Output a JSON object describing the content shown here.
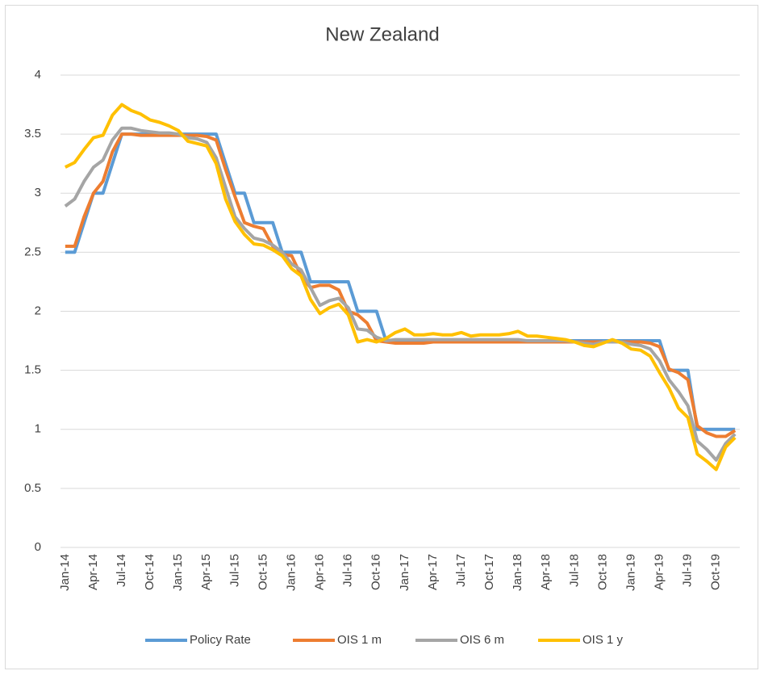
{
  "chart_data": {
    "type": "line",
    "title": "New Zealand",
    "categories": [
      "Jan-14",
      null,
      null,
      "Apr-14",
      null,
      null,
      "Jul-14",
      null,
      null,
      "Oct-14",
      null,
      null,
      "Jan-15",
      null,
      null,
      "Apr-15",
      null,
      null,
      "Jul-15",
      null,
      null,
      "Oct-15",
      null,
      null,
      "Jan-16",
      null,
      null,
      "Apr-16",
      null,
      null,
      "Jul-16",
      null,
      null,
      "Oct-16",
      null,
      null,
      "Jan-17",
      null,
      null,
      "Apr-17",
      null,
      null,
      "Jul-17",
      null,
      null,
      "Oct-17",
      null,
      null,
      "Jan-18",
      null,
      null,
      "Apr-18",
      null,
      null,
      "Jul-18",
      null,
      null,
      "Oct-18",
      null,
      null,
      "Jan-19",
      null,
      null,
      "Apr-19",
      null,
      null,
      "Jul-19",
      null,
      null,
      "Oct-19",
      null,
      null
    ],
    "series": [
      {
        "name": "Policy Rate",
        "color": "#5b9bd5",
        "values": [
          2.5,
          2.5,
          2.75,
          3,
          3,
          3.25,
          3.5,
          3.5,
          3.5,
          3.5,
          3.5,
          3.5,
          3.5,
          3.5,
          3.5,
          3.5,
          3.5,
          3.25,
          3,
          3,
          2.75,
          2.75,
          2.75,
          2.5,
          2.5,
          2.5,
          2.25,
          2.25,
          2.25,
          2.25,
          2.25,
          2,
          2,
          2,
          1.75,
          1.75,
          1.75,
          1.75,
          1.75,
          1.75,
          1.75,
          1.75,
          1.75,
          1.75,
          1.75,
          1.75,
          1.75,
          1.75,
          1.75,
          1.75,
          1.75,
          1.75,
          1.75,
          1.75,
          1.75,
          1.75,
          1.75,
          1.75,
          1.75,
          1.75,
          1.75,
          1.75,
          1.75,
          1.75,
          1.5,
          1.5,
          1.5,
          1,
          1,
          1,
          1,
          1
        ]
      },
      {
        "name": "OIS 1 m",
        "color": "#ed7d31",
        "values": [
          2.55,
          2.55,
          2.8,
          3.0,
          3.1,
          3.35,
          3.5,
          3.5,
          3.49,
          3.49,
          3.49,
          3.49,
          3.49,
          3.49,
          3.49,
          3.48,
          3.45,
          3.2,
          2.97,
          2.75,
          2.72,
          2.7,
          2.55,
          2.48,
          2.47,
          2.3,
          2.2,
          2.22,
          2.22,
          2.18,
          2.0,
          1.97,
          1.9,
          1.75,
          1.74,
          1.73,
          1.73,
          1.73,
          1.73,
          1.74,
          1.74,
          1.74,
          1.74,
          1.74,
          1.74,
          1.74,
          1.74,
          1.74,
          1.74,
          1.74,
          1.74,
          1.74,
          1.74,
          1.74,
          1.74,
          1.74,
          1.74,
          1.74,
          1.74,
          1.74,
          1.74,
          1.74,
          1.73,
          1.7,
          1.51,
          1.48,
          1.42,
          1.03,
          0.97,
          0.94,
          0.94,
          0.99
        ]
      },
      {
        "name": "OIS 6 m",
        "color": "#a5a5a5",
        "values": [
          2.89,
          2.95,
          3.1,
          3.22,
          3.28,
          3.45,
          3.55,
          3.55,
          3.53,
          3.52,
          3.51,
          3.51,
          3.5,
          3.47,
          3.46,
          3.43,
          3.3,
          3.05,
          2.8,
          2.7,
          2.62,
          2.6,
          2.56,
          2.5,
          2.4,
          2.35,
          2.2,
          2.05,
          2.09,
          2.11,
          2.03,
          1.85,
          1.84,
          1.78,
          1.75,
          1.76,
          1.76,
          1.76,
          1.76,
          1.76,
          1.76,
          1.76,
          1.76,
          1.76,
          1.76,
          1.76,
          1.76,
          1.76,
          1.76,
          1.75,
          1.75,
          1.75,
          1.75,
          1.75,
          1.74,
          1.73,
          1.72,
          1.74,
          1.74,
          1.74,
          1.72,
          1.71,
          1.68,
          1.58,
          1.42,
          1.32,
          1.2,
          0.9,
          0.83,
          0.74,
          0.88,
          0.96
        ]
      },
      {
        "name": "OIS 1 y",
        "color": "#ffc000",
        "values": [
          3.22,
          3.26,
          3.37,
          3.47,
          3.49,
          3.66,
          3.75,
          3.7,
          3.67,
          3.62,
          3.6,
          3.57,
          3.53,
          3.44,
          3.42,
          3.4,
          3.25,
          2.95,
          2.76,
          2.65,
          2.57,
          2.56,
          2.52,
          2.47,
          2.36,
          2.3,
          2.1,
          1.98,
          2.03,
          2.06,
          1.97,
          1.74,
          1.76,
          1.74,
          1.77,
          1.82,
          1.85,
          1.8,
          1.8,
          1.81,
          1.8,
          1.8,
          1.82,
          1.79,
          1.8,
          1.8,
          1.8,
          1.81,
          1.83,
          1.79,
          1.79,
          1.78,
          1.77,
          1.76,
          1.74,
          1.71,
          1.7,
          1.73,
          1.76,
          1.73,
          1.68,
          1.67,
          1.62,
          1.48,
          1.35,
          1.18,
          1.1,
          0.79,
          0.73,
          0.66,
          0.85,
          0.93
        ]
      }
    ],
    "ylim": [
      0,
      4
    ],
    "yticks": [
      0,
      0.5,
      1,
      1.5,
      2,
      2.5,
      3,
      3.5,
      4
    ],
    "grid": true,
    "legend": "bottom"
  }
}
